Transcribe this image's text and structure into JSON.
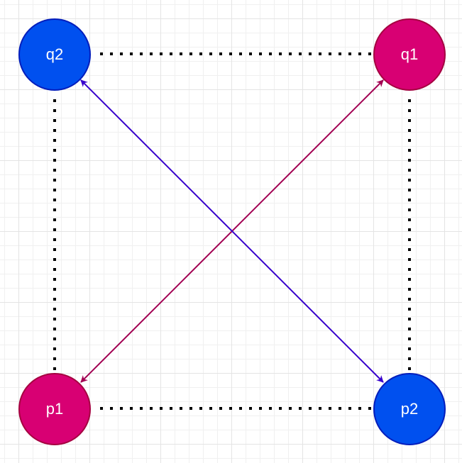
{
  "colors": {
    "magenta_node_fill": "#d80073",
    "magenta_node_stroke": "#a50040",
    "blue_node_fill": "#0050ef",
    "blue_node_stroke": "#001dbc",
    "magenta_edge": "#a20052",
    "blue_edge": "#3700cc",
    "dotted_edge": "#000000",
    "label_text": "#ffffff"
  },
  "nodes": {
    "q2": {
      "label": "q2",
      "color": "blue"
    },
    "q1": {
      "label": "q1",
      "color": "magenta"
    },
    "p1": {
      "label": "p1",
      "color": "magenta"
    },
    "p2": {
      "label": "p2",
      "color": "blue"
    }
  },
  "edges": [
    {
      "id": "q2-q1",
      "from": "q2",
      "to": "q1",
      "style": "dotted",
      "arrow": "none"
    },
    {
      "id": "q2-p1",
      "from": "q2",
      "to": "p1",
      "style": "dotted",
      "arrow": "none"
    },
    {
      "id": "q1-p2",
      "from": "q1",
      "to": "p2",
      "style": "dotted",
      "arrow": "none"
    },
    {
      "id": "p1-p2",
      "from": "p1",
      "to": "p2",
      "style": "dotted",
      "arrow": "none"
    },
    {
      "id": "p1-q1",
      "from": "p1",
      "to": "q1",
      "style": "solid",
      "arrow": "both",
      "color": "magenta"
    },
    {
      "id": "q2-p2",
      "from": "q2",
      "to": "p2",
      "style": "solid",
      "arrow": "both",
      "color": "blue"
    }
  ]
}
